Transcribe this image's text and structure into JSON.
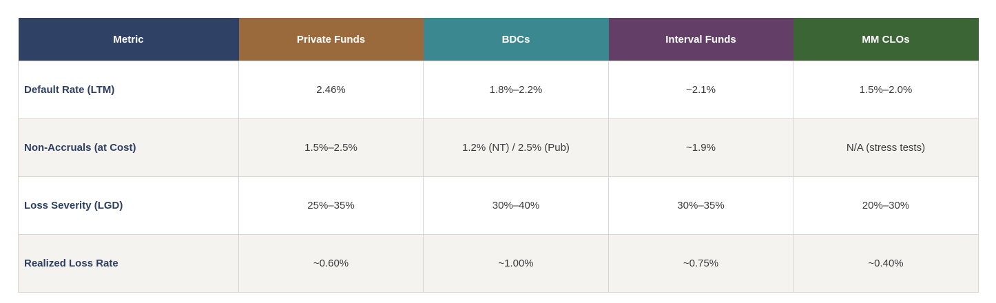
{
  "colors": {
    "metric_header": "#2f4266",
    "private_funds_header": "#9a6a3d",
    "bdcs_header": "#3b8890",
    "interval_funds_header": "#633f67",
    "mm_clos_header": "#3c6535",
    "metric_text": "#2d3e63",
    "cell_text": "#3a3a3a",
    "alt_row_bg": "#f5f3ef",
    "border": "#d9d5cf"
  },
  "table": {
    "headers": [
      "Metric",
      "Private Funds",
      "BDCs",
      "Interval Funds",
      "MM CLOs"
    ],
    "rows": [
      [
        "Default Rate (LTM)",
        "2.46%",
        "1.8%–2.2%",
        "~2.1%",
        "1.5%–2.0%"
      ],
      [
        "Non-Accruals (at Cost)",
        "1.5%–2.5%",
        "1.2% (NT) / 2.5% (Pub)",
        "~1.9%",
        "N/A (stress tests)"
      ],
      [
        "Loss Severity (LGD)",
        "25%–35%",
        "30%–40%",
        "30%–35%",
        "20%–30%"
      ],
      [
        "Realized Loss Rate",
        "~0.60%",
        "~1.00%",
        "~0.75%",
        "~0.40%"
      ]
    ]
  }
}
